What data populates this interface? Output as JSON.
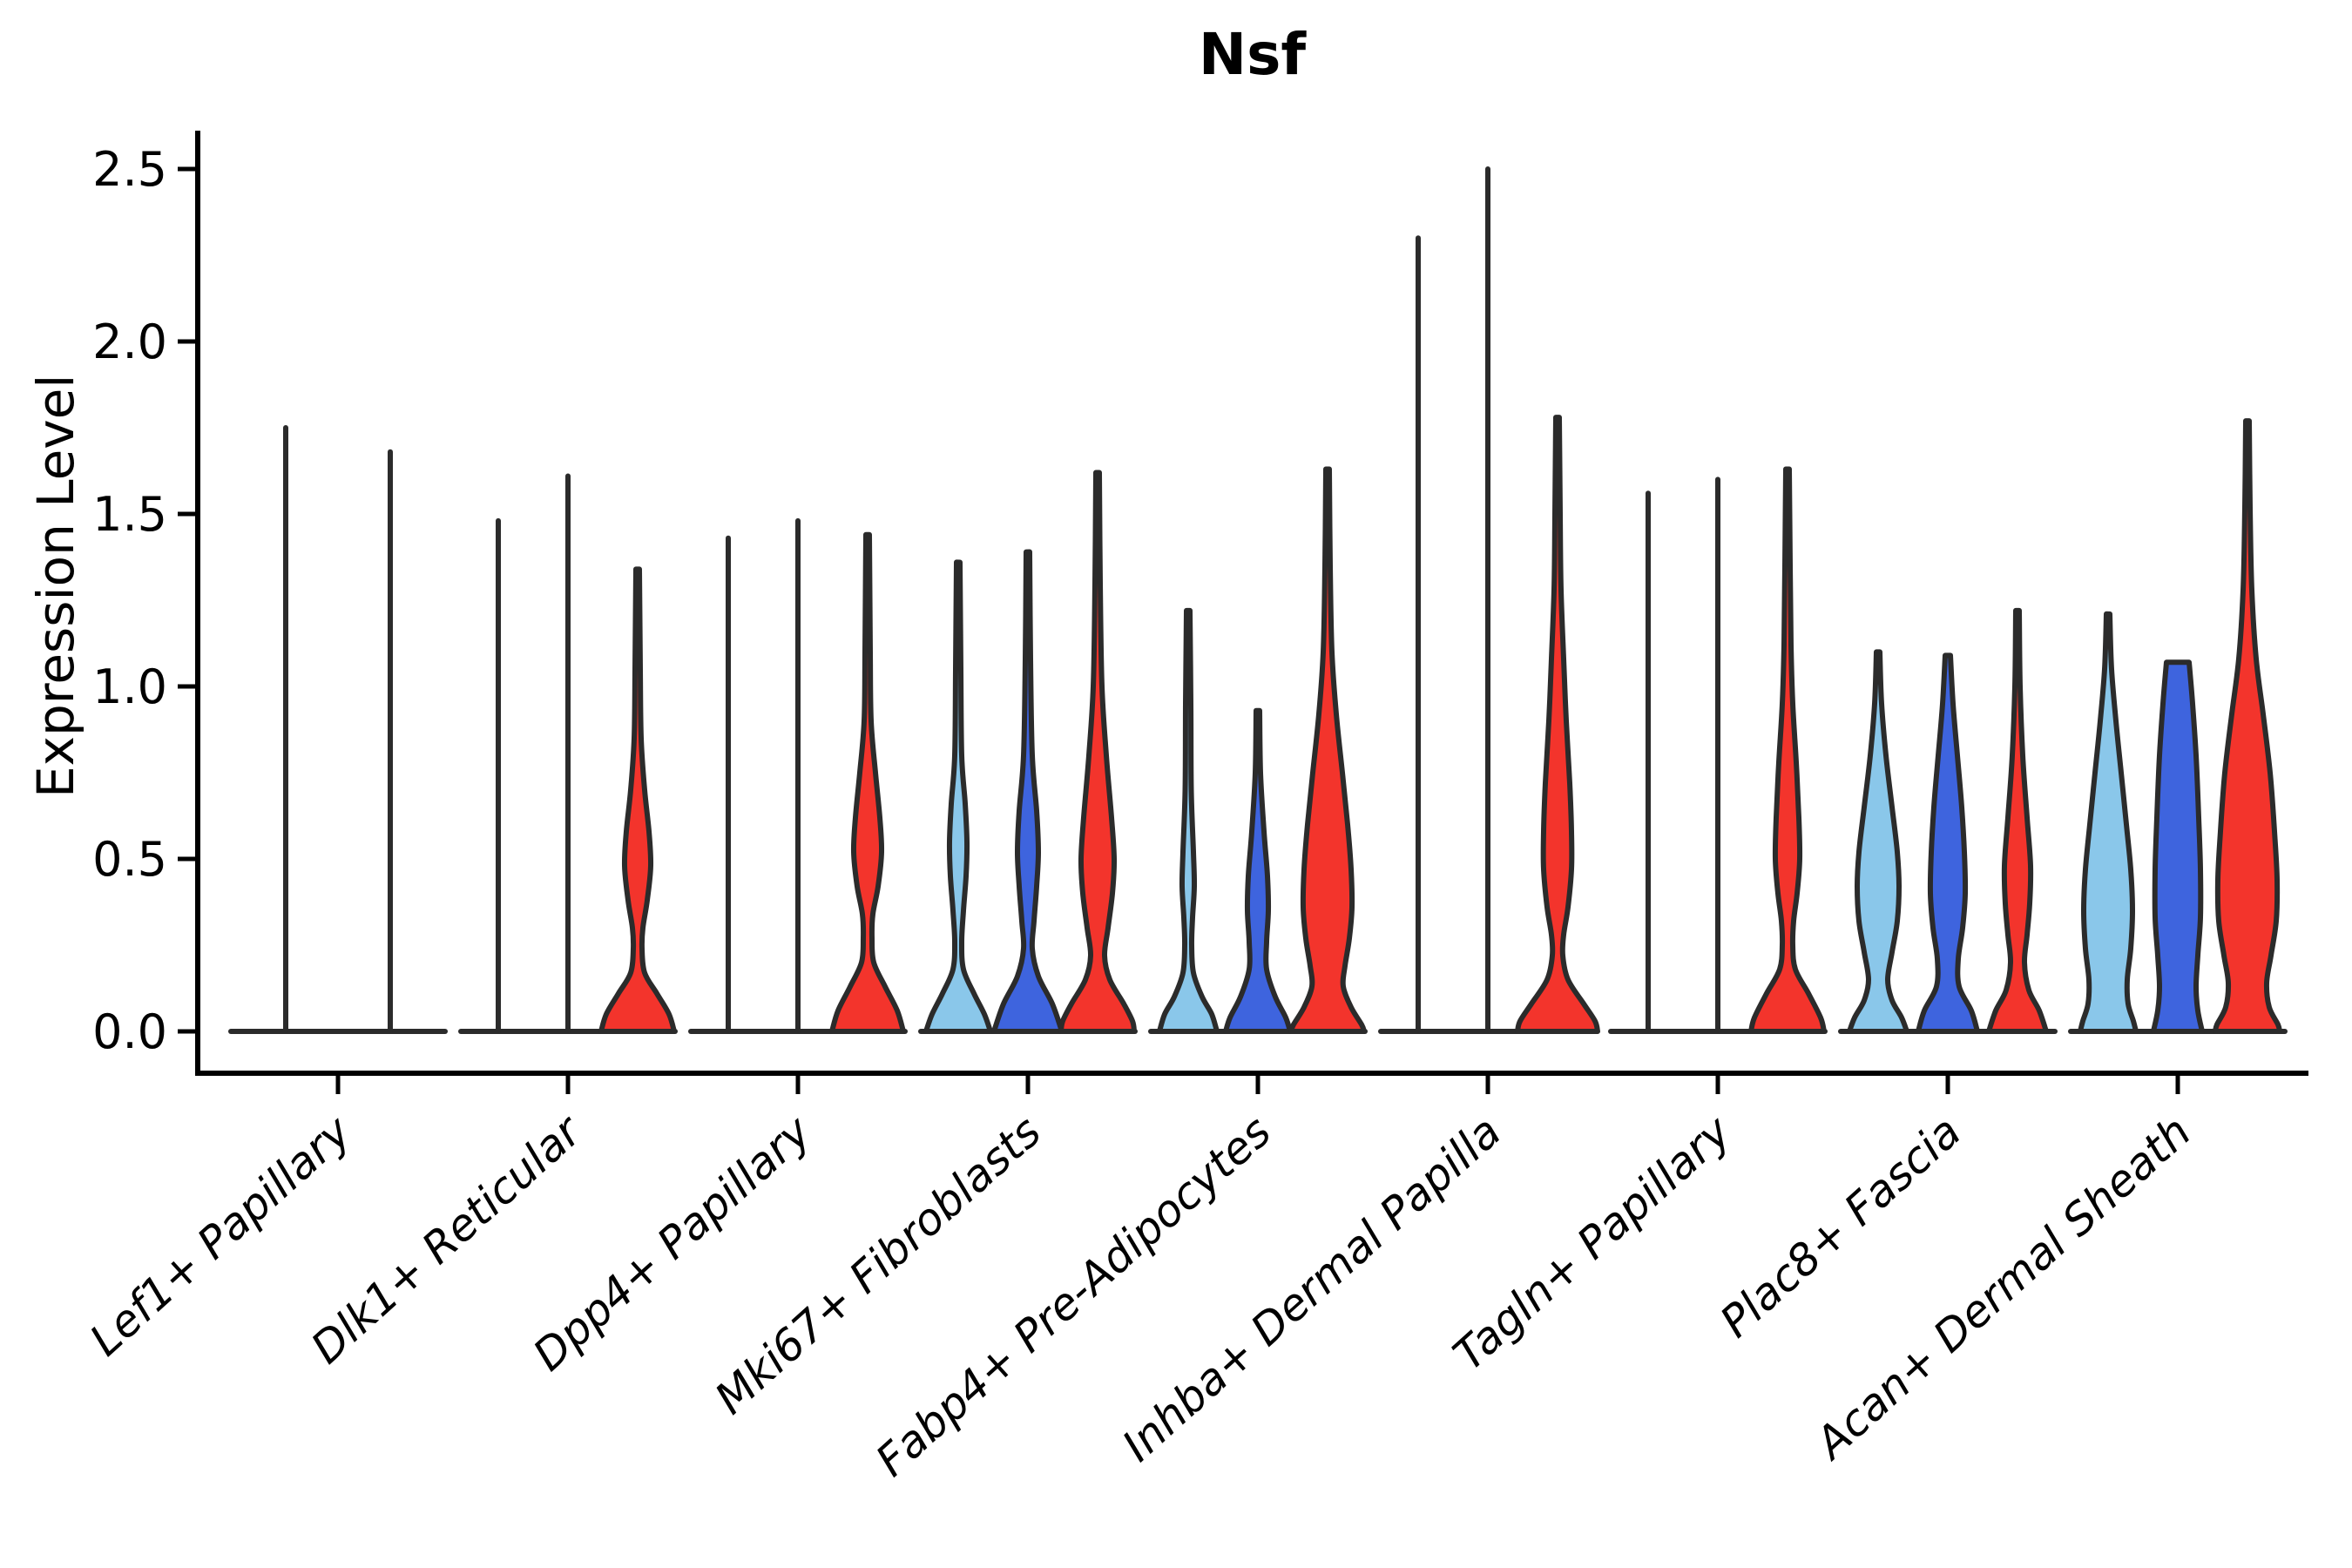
{
  "title": "Nsf",
  "y_axis": {
    "label": "Expression Level",
    "tick_labels": [
      "0.0",
      "0.5",
      "1.0",
      "1.5",
      "2.0",
      "2.5"
    ],
    "tick_values": [
      0,
      0.5,
      1.0,
      1.5,
      2.0,
      2.5
    ]
  },
  "colors": {
    "light_blue": "#8AC7EA",
    "dark_blue": "#3E64DE",
    "red": "#F3342C",
    "outline": "#2b2b2b",
    "axis": "#000000",
    "background": "#ffffff"
  },
  "chart_data": {
    "type": "violin",
    "title": "Nsf",
    "xlabel": "",
    "ylabel": "Expression Level",
    "ylim": [
      0,
      2.6
    ],
    "y_ticks": [
      0,
      0.5,
      1.0,
      1.5,
      2.0,
      2.5
    ],
    "grid": false,
    "legend_position": "none",
    "x_label_rotation_deg": -42,
    "categories": [
      "Lef1+ Papillary",
      "Dlk1+ Reticular",
      "Dpp4+ Papillary",
      "Mki67+ Fibroblasts",
      "Fabp4+ Pre-Adipocytes",
      "Inhba+ Dermal Papilla",
      "Tagln+ Papillary",
      "Plac8+ Fascia",
      "Acan+ Dermal Sheath"
    ],
    "groups": [
      {
        "category": "Lef1+ Papillary",
        "violins": [
          {
            "color": "light_blue",
            "shape": "line",
            "max": 1.75
          },
          {
            "color": "dark_blue",
            "shape": "line",
            "max": 1.68
          }
        ]
      },
      {
        "category": "Dlk1+ Reticular",
        "violins": [
          {
            "color": "light_blue",
            "shape": "line",
            "max": 1.48
          },
          {
            "color": "dark_blue",
            "shape": "line",
            "max": 1.61
          },
          {
            "color": "red",
            "shape": "violin",
            "max": 1.34,
            "profile": [
              [
                1.34,
                2
              ],
              [
                1.05,
                3
              ],
              [
                0.85,
                4
              ],
              [
                0.7,
                8
              ],
              [
                0.58,
                13
              ],
              [
                0.48,
                15
              ],
              [
                0.38,
                11
              ],
              [
                0.3,
                6
              ],
              [
                0.24,
                5
              ],
              [
                0.17,
                8
              ],
              [
                0.11,
                22
              ],
              [
                0.05,
                36
              ],
              [
                0,
                42
              ]
            ]
          }
        ]
      },
      {
        "category": "Dpp4+ Papillary",
        "violins": [
          {
            "color": "light_blue",
            "shape": "line",
            "max": 1.43
          },
          {
            "color": "dark_blue",
            "shape": "line",
            "max": 1.48
          },
          {
            "color": "red",
            "shape": "violin",
            "max": 1.44,
            "profile": [
              [
                1.44,
                2
              ],
              [
                1.1,
                3
              ],
              [
                0.9,
                4
              ],
              [
                0.75,
                9
              ],
              [
                0.62,
                14
              ],
              [
                0.52,
                16
              ],
              [
                0.42,
                12
              ],
              [
                0.34,
                6
              ],
              [
                0.27,
                5
              ],
              [
                0.2,
                7
              ],
              [
                0.13,
                20
              ],
              [
                0.06,
                34
              ],
              [
                0,
                41
              ]
            ]
          }
        ]
      },
      {
        "category": "Mki67+ Fibroblasts",
        "violins": [
          {
            "color": "light_blue",
            "shape": "violin",
            "max": 1.36,
            "profile": [
              [
                1.36,
                2
              ],
              [
                1.05,
                3
              ],
              [
                0.8,
                4
              ],
              [
                0.66,
                8
              ],
              [
                0.55,
                10
              ],
              [
                0.45,
                9
              ],
              [
                0.35,
                6
              ],
              [
                0.26,
                4
              ],
              [
                0.18,
                6
              ],
              [
                0.11,
                18
              ],
              [
                0.05,
                30
              ],
              [
                0,
                37
              ]
            ]
          },
          {
            "color": "dark_blue",
            "shape": "violin",
            "max": 1.39,
            "profile": [
              [
                1.39,
                2
              ],
              [
                1.08,
                3
              ],
              [
                0.8,
                5
              ],
              [
                0.64,
                10
              ],
              [
                0.52,
                12
              ],
              [
                0.42,
                10
              ],
              [
                0.32,
                7
              ],
              [
                0.24,
                5
              ],
              [
                0.16,
                12
              ],
              [
                0.08,
                28
              ],
              [
                0,
                39
              ]
            ]
          },
          {
            "color": "red",
            "shape": "violin",
            "max": 1.62,
            "profile": [
              [
                1.62,
                2
              ],
              [
                1.3,
                3
              ],
              [
                1.0,
                5
              ],
              [
                0.8,
                10
              ],
              [
                0.62,
                16
              ],
              [
                0.5,
                19
              ],
              [
                0.4,
                17
              ],
              [
                0.3,
                12
              ],
              [
                0.22,
                8
              ],
              [
                0.15,
                14
              ],
              [
                0.08,
                30
              ],
              [
                0.03,
                40
              ],
              [
                0,
                42
              ]
            ]
          }
        ]
      },
      {
        "category": "Fabp4+ Pre-Adipocytes",
        "violins": [
          {
            "color": "light_blue",
            "shape": "violin",
            "max": 1.22,
            "profile": [
              [
                1.22,
                2
              ],
              [
                0.95,
                3
              ],
              [
                0.7,
                3.5
              ],
              [
                0.52,
                6
              ],
              [
                0.42,
                7
              ],
              [
                0.33,
                5
              ],
              [
                0.25,
                4
              ],
              [
                0.17,
                6
              ],
              [
                0.1,
                16
              ],
              [
                0.05,
                27
              ],
              [
                0,
                33
              ]
            ]
          },
          {
            "color": "dark_blue",
            "shape": "violin",
            "max": 0.93,
            "profile": [
              [
                0.93,
                2
              ],
              [
                0.75,
                3
              ],
              [
                0.58,
                7
              ],
              [
                0.45,
                11
              ],
              [
                0.35,
                12
              ],
              [
                0.26,
                10
              ],
              [
                0.18,
                10
              ],
              [
                0.1,
                20
              ],
              [
                0.04,
                32
              ],
              [
                0,
                37
              ]
            ]
          },
          {
            "color": "red",
            "shape": "violin",
            "max": 1.63,
            "profile": [
              [
                1.63,
                2
              ],
              [
                1.35,
                3
              ],
              [
                1.1,
                5
              ],
              [
                0.92,
                10
              ],
              [
                0.75,
                17
              ],
              [
                0.6,
                23
              ],
              [
                0.47,
                27
              ],
              [
                0.36,
                28
              ],
              [
                0.27,
                25
              ],
              [
                0.19,
                20
              ],
              [
                0.13,
                18
              ],
              [
                0.07,
                27
              ],
              [
                0.02,
                39
              ],
              [
                0,
                42
              ]
            ]
          }
        ]
      },
      {
        "category": "Inhba+ Dermal Papilla",
        "violins": [
          {
            "color": "light_blue",
            "shape": "line",
            "max": 2.3
          },
          {
            "color": "dark_blue",
            "shape": "line",
            "max": 2.5
          },
          {
            "color": "red",
            "shape": "violin",
            "max": 1.78,
            "profile": [
              [
                1.78,
                2
              ],
              [
                1.5,
                3
              ],
              [
                1.28,
                4
              ],
              [
                1.08,
                7
              ],
              [
                0.9,
                10
              ],
              [
                0.72,
                14
              ],
              [
                0.58,
                16
              ],
              [
                0.47,
                16
              ],
              [
                0.36,
                12
              ],
              [
                0.28,
                7
              ],
              [
                0.22,
                6
              ],
              [
                0.15,
                12
              ],
              [
                0.08,
                30
              ],
              [
                0.03,
                43
              ],
              [
                0,
                46
              ]
            ]
          }
        ]
      },
      {
        "category": "Tagln+ Papillary",
        "violins": [
          {
            "color": "light_blue",
            "shape": "line",
            "max": 1.56
          },
          {
            "color": "dark_blue",
            "shape": "line",
            "max": 1.6
          },
          {
            "color": "red",
            "shape": "violin",
            "max": 1.63,
            "profile": [
              [
                1.63,
                2
              ],
              [
                1.35,
                3
              ],
              [
                1.12,
                4
              ],
              [
                0.95,
                6
              ],
              [
                0.78,
                10
              ],
              [
                0.62,
                13
              ],
              [
                0.5,
                14
              ],
              [
                0.4,
                11
              ],
              [
                0.32,
                7
              ],
              [
                0.25,
                6
              ],
              [
                0.18,
                9
              ],
              [
                0.11,
                24
              ],
              [
                0.04,
                38
              ],
              [
                0,
                42
              ]
            ]
          }
        ]
      },
      {
        "category": "Plac8+ Fascia",
        "violins": [
          {
            "color": "light_blue",
            "shape": "violin",
            "max": 1.1,
            "profile": [
              [
                1.1,
                2
              ],
              [
                0.95,
                4
              ],
              [
                0.8,
                9
              ],
              [
                0.65,
                16
              ],
              [
                0.52,
                22
              ],
              [
                0.42,
                24
              ],
              [
                0.32,
                22
              ],
              [
                0.23,
                16
              ],
              [
                0.15,
                11
              ],
              [
                0.09,
                16
              ],
              [
                0.04,
                27
              ],
              [
                0,
                33
              ]
            ]
          },
          {
            "color": "dark_blue",
            "shape": "violin",
            "max": 1.09,
            "profile": [
              [
                1.09,
                3
              ],
              [
                0.95,
                6
              ],
              [
                0.8,
                11
              ],
              [
                0.65,
                16
              ],
              [
                0.52,
                19
              ],
              [
                0.4,
                20
              ],
              [
                0.3,
                17
              ],
              [
                0.21,
                12
              ],
              [
                0.13,
                13
              ],
              [
                0.06,
                27
              ],
              [
                0,
                34
              ]
            ]
          },
          {
            "color": "red",
            "shape": "violin",
            "max": 1.22,
            "profile": [
              [
                1.22,
                2
              ],
              [
                1.0,
                3
              ],
              [
                0.8,
                6
              ],
              [
                0.62,
                11
              ],
              [
                0.48,
                15
              ],
              [
                0.37,
                14
              ],
              [
                0.28,
                11
              ],
              [
                0.2,
                8
              ],
              [
                0.12,
                13
              ],
              [
                0.06,
                25
              ],
              [
                0,
                33
              ]
            ]
          }
        ]
      },
      {
        "category": "Acan+ Dermal Sheath",
        "violins": [
          {
            "color": "light_blue",
            "shape": "violin",
            "max": 1.21,
            "profile": [
              [
                1.21,
                2
              ],
              [
                1.05,
                4
              ],
              [
                0.9,
                9
              ],
              [
                0.75,
                15
              ],
              [
                0.6,
                21
              ],
              [
                0.47,
                26
              ],
              [
                0.35,
                28
              ],
              [
                0.24,
                26
              ],
              [
                0.15,
                22
              ],
              [
                0.08,
                23
              ],
              [
                0.03,
                29
              ],
              [
                0,
                32
              ]
            ]
          },
          {
            "color": "dark_blue",
            "shape": "violin",
            "max": 1.07,
            "profile": [
              [
                1.07,
                13
              ],
              [
                0.95,
                17
              ],
              [
                0.8,
                21
              ],
              [
                0.62,
                24
              ],
              [
                0.47,
                26
              ],
              [
                0.33,
                26
              ],
              [
                0.22,
                23
              ],
              [
                0.13,
                21
              ],
              [
                0.06,
                23
              ],
              [
                0,
                28
              ]
            ]
          },
          {
            "color": "red",
            "shape": "violin",
            "max": 1.77,
            "profile": [
              [
                1.77,
                2
              ],
              [
                1.52,
                3
              ],
              [
                1.28,
                5
              ],
              [
                1.08,
                10
              ],
              [
                0.92,
                18
              ],
              [
                0.75,
                26
              ],
              [
                0.58,
                31
              ],
              [
                0.44,
                34
              ],
              [
                0.32,
                33
              ],
              [
                0.22,
                27
              ],
              [
                0.14,
                22
              ],
              [
                0.07,
                25
              ],
              [
                0.02,
                35
              ],
              [
                0,
                37
              ]
            ]
          }
        ]
      }
    ]
  }
}
